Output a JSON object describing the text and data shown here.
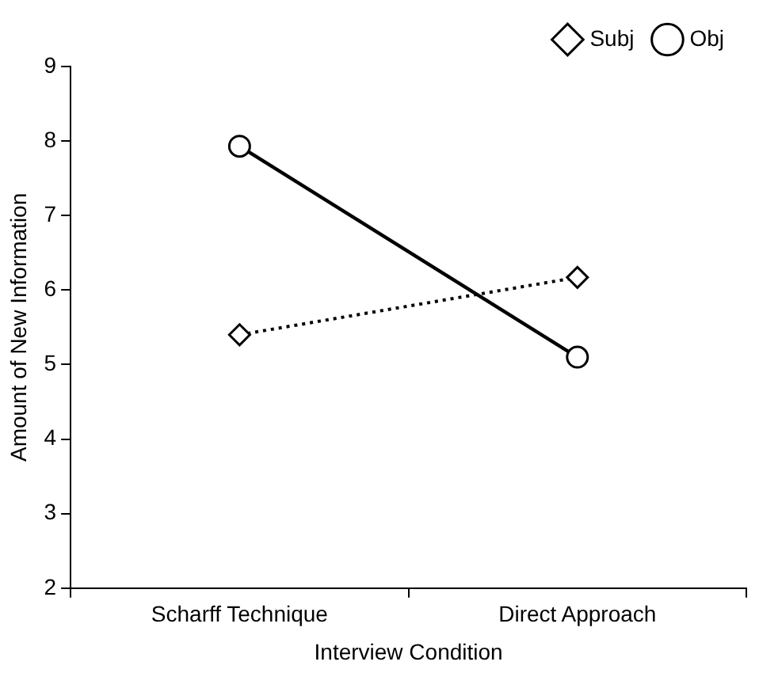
{
  "chart_data": {
    "type": "line",
    "xlabel": "Interview Condition",
    "ylabel": "Amount of New Information",
    "categories": [
      "Scharff Technique",
      "Direct Approach"
    ],
    "series": [
      {
        "name": "Subj",
        "color": "#000000",
        "values": [
          5.4,
          6.17
        ],
        "marker": "diamond",
        "line_style": "dotted"
      },
      {
        "name": "Obj",
        "color": "#000000",
        "values": [
          7.93,
          5.1
        ],
        "marker": "circle",
        "line_style": "solid"
      }
    ],
    "ylim": [
      2,
      9
    ],
    "yticks": [
      2,
      3,
      4,
      5,
      6,
      7,
      8,
      9
    ],
    "grid": false,
    "legend": "top right"
  }
}
